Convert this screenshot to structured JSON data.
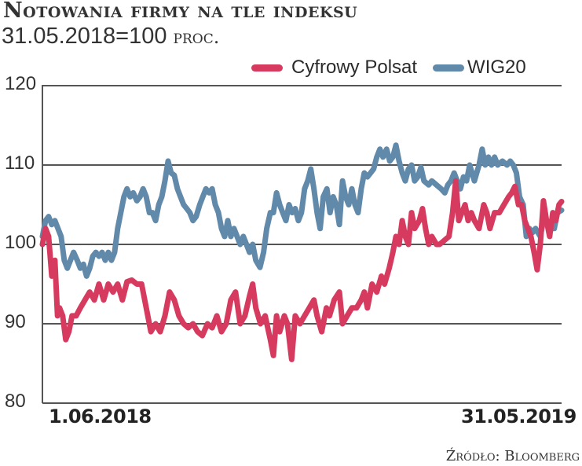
{
  "header": {
    "title": "Notowania firmy na tle indeksu",
    "subtitle_base": "31.05.2018=100",
    "subtitle_unit": "proc."
  },
  "legend": {
    "items": [
      {
        "label": "Cyfrowy Polsat",
        "color": "#d63a5e"
      },
      {
        "label": "WIG20",
        "color": "#6189aa"
      }
    ]
  },
  "axis": {
    "y_ticks": [
      "120",
      "110",
      "100",
      "90",
      "80"
    ],
    "x_start_label": "1.06.2018",
    "x_end_label": "31.05.2019"
  },
  "footer": {
    "source": "Źródło: Bloomberg"
  },
  "chart_data": {
    "type": "line",
    "title": "Notowania firmy na tle indeksu",
    "subtitle": "31.05.2018=100 proc.",
    "xlabel": "",
    "ylabel": "",
    "ylim": [
      80,
      120
    ],
    "y_ticks": [
      80,
      90,
      100,
      110,
      120
    ],
    "x_range": [
      "1.06.2018",
      "31.05.2019"
    ],
    "grid": true,
    "legend_position": "top-right",
    "x_note": "x values are fractional position (0 = 1.06.2018, 1 = 31.05.2019)",
    "series": [
      {
        "name": "Cyfrowy Polsat",
        "color": "#d63a5e",
        "points": [
          [
            0.0,
            100
          ],
          [
            0.006,
            102
          ],
          [
            0.012,
            101
          ],
          [
            0.018,
            96
          ],
          [
            0.024,
            98
          ],
          [
            0.029,
            91
          ],
          [
            0.033,
            92
          ],
          [
            0.039,
            91
          ],
          [
            0.045,
            88
          ],
          [
            0.051,
            89
          ],
          [
            0.057,
            91
          ],
          [
            0.065,
            91
          ],
          [
            0.073,
            92
          ],
          [
            0.082,
            93
          ],
          [
            0.091,
            94
          ],
          [
            0.1,
            93
          ],
          [
            0.109,
            95
          ],
          [
            0.118,
            93
          ],
          [
            0.127,
            95
          ],
          [
            0.136,
            94
          ],
          [
            0.145,
            95
          ],
          [
            0.154,
            93
          ],
          [
            0.163,
            95.3
          ],
          [
            0.172,
            95.5
          ],
          [
            0.182,
            95
          ],
          [
            0.191,
            95
          ],
          [
            0.2,
            92
          ],
          [
            0.209,
            89
          ],
          [
            0.218,
            90
          ],
          [
            0.227,
            89
          ],
          [
            0.236,
            91
          ],
          [
            0.245,
            94
          ],
          [
            0.254,
            93
          ],
          [
            0.263,
            91
          ],
          [
            0.272,
            90
          ],
          [
            0.281,
            89.5
          ],
          [
            0.29,
            90
          ],
          [
            0.299,
            89
          ],
          [
            0.308,
            88.5
          ],
          [
            0.318,
            90
          ],
          [
            0.327,
            89.5
          ],
          [
            0.336,
            91
          ],
          [
            0.345,
            89
          ],
          [
            0.354,
            90
          ],
          [
            0.363,
            93
          ],
          [
            0.372,
            94
          ],
          [
            0.381,
            90
          ],
          [
            0.39,
            91
          ],
          [
            0.399,
            93.5
          ],
          [
            0.405,
            95
          ],
          [
            0.411,
            92
          ],
          [
            0.42,
            90
          ],
          [
            0.429,
            91
          ],
          [
            0.439,
            88
          ],
          [
            0.445,
            86
          ],
          [
            0.451,
            91
          ],
          [
            0.457,
            89
          ],
          [
            0.466,
            91
          ],
          [
            0.472,
            90
          ],
          [
            0.48,
            85.5
          ],
          [
            0.487,
            91
          ],
          [
            0.496,
            90
          ],
          [
            0.505,
            91
          ],
          [
            0.514,
            92
          ],
          [
            0.523,
            93
          ],
          [
            0.529,
            91
          ],
          [
            0.538,
            89
          ],
          [
            0.547,
            92
          ],
          [
            0.553,
            91
          ],
          [
            0.562,
            93
          ],
          [
            0.572,
            94
          ],
          [
            0.578,
            90
          ],
          [
            0.587,
            91
          ],
          [
            0.596,
            92
          ],
          [
            0.605,
            92
          ],
          [
            0.614,
            93
          ],
          [
            0.62,
            94
          ],
          [
            0.626,
            92
          ],
          [
            0.635,
            95
          ],
          [
            0.644,
            94
          ],
          [
            0.653,
            96
          ],
          [
            0.659,
            95
          ],
          [
            0.668,
            97
          ],
          [
            0.675,
            99
          ],
          [
            0.681,
            101
          ],
          [
            0.687,
            100
          ],
          [
            0.693,
            103
          ],
          [
            0.699,
            101
          ],
          [
            0.705,
            100
          ],
          [
            0.711,
            104
          ],
          [
            0.717,
            102
          ],
          [
            0.726,
            103
          ],
          [
            0.732,
            104.5
          ],
          [
            0.738,
            102
          ],
          [
            0.744,
            100
          ],
          [
            0.75,
            101
          ],
          [
            0.759,
            100
          ],
          [
            0.765,
            100
          ],
          [
            0.774,
            100.5
          ],
          [
            0.783,
            101
          ],
          [
            0.79,
            104
          ],
          [
            0.796,
            108
          ],
          [
            0.802,
            103
          ],
          [
            0.808,
            104
          ],
          [
            0.814,
            105
          ],
          [
            0.82,
            103
          ],
          [
            0.826,
            104
          ],
          [
            0.832,
            103
          ],
          [
            0.841,
            102
          ],
          [
            0.85,
            105
          ],
          [
            0.856,
            104
          ],
          [
            0.862,
            102
          ],
          [
            0.871,
            104
          ],
          [
            0.88,
            104
          ],
          [
            0.889,
            105
          ],
          [
            0.898,
            106
          ],
          [
            0.904,
            106.5
          ],
          [
            0.91,
            107.3
          ],
          [
            0.917,
            105
          ],
          [
            0.923,
            105
          ],
          [
            0.929,
            103
          ],
          [
            0.935,
            102
          ],
          [
            0.941,
            101
          ],
          [
            0.947,
            99
          ],
          [
            0.953,
            96.8
          ],
          [
            0.959,
            100
          ],
          [
            0.965,
            105.5
          ],
          [
            0.971,
            103
          ],
          [
            0.977,
            101
          ],
          [
            0.983,
            104
          ],
          [
            0.989,
            103
          ],
          [
            0.995,
            105
          ],
          [
            1.0,
            105.4
          ]
        ]
      },
      {
        "name": "WIG20",
        "color": "#6189aa",
        "points": [
          [
            0.0,
            101
          ],
          [
            0.006,
            103
          ],
          [
            0.012,
            103.5
          ],
          [
            0.018,
            102.5
          ],
          [
            0.024,
            103
          ],
          [
            0.03,
            102
          ],
          [
            0.036,
            101
          ],
          [
            0.042,
            98
          ],
          [
            0.048,
            97
          ],
          [
            0.054,
            98
          ],
          [
            0.06,
            99
          ],
          [
            0.067,
            98
          ],
          [
            0.073,
            97
          ],
          [
            0.079,
            97.5
          ],
          [
            0.085,
            96
          ],
          [
            0.091,
            97
          ],
          [
            0.097,
            98.5
          ],
          [
            0.103,
            99
          ],
          [
            0.109,
            98.5
          ],
          [
            0.115,
            99
          ],
          [
            0.121,
            98
          ],
          [
            0.127,
            99
          ],
          [
            0.133,
            98
          ],
          [
            0.139,
            99
          ],
          [
            0.145,
            102
          ],
          [
            0.151,
            104
          ],
          [
            0.157,
            106
          ],
          [
            0.163,
            107
          ],
          [
            0.169,
            106
          ],
          [
            0.175,
            106.5
          ],
          [
            0.182,
            105.5
          ],
          [
            0.188,
            106
          ],
          [
            0.194,
            107
          ],
          [
            0.2,
            106
          ],
          [
            0.206,
            104
          ],
          [
            0.212,
            104
          ],
          [
            0.218,
            103
          ],
          [
            0.224,
            105
          ],
          [
            0.23,
            106
          ],
          [
            0.236,
            108
          ],
          [
            0.242,
            110.5
          ],
          [
            0.248,
            109
          ],
          [
            0.254,
            108.7
          ],
          [
            0.26,
            107
          ],
          [
            0.266,
            106
          ],
          [
            0.272,
            105
          ],
          [
            0.278,
            104.5
          ],
          [
            0.284,
            104
          ],
          [
            0.29,
            103
          ],
          [
            0.296,
            103.5
          ],
          [
            0.303,
            105
          ],
          [
            0.309,
            106
          ],
          [
            0.315,
            107
          ],
          [
            0.321,
            106.5
          ],
          [
            0.327,
            107
          ],
          [
            0.333,
            105
          ],
          [
            0.339,
            104
          ],
          [
            0.345,
            102
          ],
          [
            0.351,
            101
          ],
          [
            0.357,
            103
          ],
          [
            0.363,
            101
          ],
          [
            0.369,
            102
          ],
          [
            0.375,
            101
          ],
          [
            0.381,
            100
          ],
          [
            0.387,
            101
          ],
          [
            0.393,
            100
          ],
          [
            0.399,
            99
          ],
          [
            0.405,
            100
          ],
          [
            0.411,
            98
          ],
          [
            0.419,
            97.1
          ],
          [
            0.426,
            99
          ],
          [
            0.432,
            102
          ],
          [
            0.439,
            104
          ],
          [
            0.445,
            104
          ],
          [
            0.451,
            106.5
          ],
          [
            0.457,
            105
          ],
          [
            0.463,
            104
          ],
          [
            0.469,
            103
          ],
          [
            0.475,
            105
          ],
          [
            0.481,
            104
          ],
          [
            0.487,
            104.5
          ],
          [
            0.493,
            103
          ],
          [
            0.499,
            104
          ],
          [
            0.505,
            107
          ],
          [
            0.511,
            108
          ],
          [
            0.517,
            109.5
          ],
          [
            0.523,
            107
          ],
          [
            0.529,
            104
          ],
          [
            0.535,
            102
          ],
          [
            0.541,
            106
          ],
          [
            0.548,
            107
          ],
          [
            0.554,
            104
          ],
          [
            0.56,
            106
          ],
          [
            0.566,
            105
          ],
          [
            0.572,
            102.5
          ],
          [
            0.578,
            108
          ],
          [
            0.584,
            106
          ],
          [
            0.59,
            105
          ],
          [
            0.596,
            107
          ],
          [
            0.602,
            105
          ],
          [
            0.608,
            104
          ],
          [
            0.614,
            107
          ],
          [
            0.62,
            109
          ],
          [
            0.626,
            108.5
          ],
          [
            0.632,
            109
          ],
          [
            0.638,
            109.5
          ],
          [
            0.644,
            111
          ],
          [
            0.65,
            112
          ],
          [
            0.656,
            111
          ],
          [
            0.663,
            112
          ],
          [
            0.669,
            110.5
          ],
          [
            0.675,
            111
          ],
          [
            0.681,
            112.5
          ],
          [
            0.687,
            110.5
          ],
          [
            0.693,
            109
          ],
          [
            0.699,
            108
          ],
          [
            0.705,
            109.5
          ],
          [
            0.711,
            110
          ],
          [
            0.717,
            108
          ],
          [
            0.723,
            108.5
          ],
          [
            0.729,
            109.7
          ],
          [
            0.735,
            108
          ],
          [
            0.744,
            107.5
          ],
          [
            0.75,
            108
          ],
          [
            0.759,
            107.5
          ],
          [
            0.768,
            107
          ],
          [
            0.775,
            106.5
          ],
          [
            0.781,
            107.5
          ],
          [
            0.787,
            108
          ],
          [
            0.793,
            109
          ],
          [
            0.799,
            108
          ],
          [
            0.805,
            107
          ],
          [
            0.811,
            108.5
          ],
          [
            0.817,
            108
          ],
          [
            0.823,
            110
          ],
          [
            0.832,
            108
          ],
          [
            0.841,
            110
          ],
          [
            0.847,
            112
          ],
          [
            0.853,
            110
          ],
          [
            0.859,
            111
          ],
          [
            0.865,
            110
          ],
          [
            0.871,
            111
          ],
          [
            0.877,
            110
          ],
          [
            0.886,
            110.5
          ],
          [
            0.895,
            110
          ],
          [
            0.901,
            110.5
          ],
          [
            0.907,
            110
          ],
          [
            0.913,
            109
          ],
          [
            0.919,
            106
          ],
          [
            0.926,
            105
          ],
          [
            0.932,
            101
          ],
          [
            0.938,
            102
          ],
          [
            0.944,
            101.5
          ],
          [
            0.95,
            102
          ],
          [
            0.959,
            101
          ],
          [
            0.965,
            103
          ],
          [
            0.971,
            103
          ],
          [
            0.977,
            102
          ],
          [
            0.986,
            102
          ],
          [
            0.992,
            104
          ],
          [
            1.0,
            104.3
          ]
        ]
      }
    ]
  }
}
